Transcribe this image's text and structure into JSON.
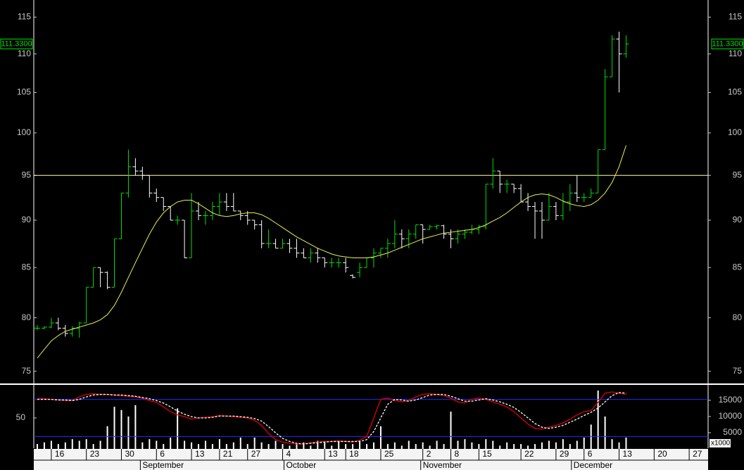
{
  "chart_data": [
    {
      "type": "ohlc",
      "open": [
        79,
        79,
        79.1,
        79.5,
        79,
        78.5,
        79,
        79.5,
        83,
        85,
        84.5,
        83,
        88,
        93,
        96,
        95.5,
        95,
        93,
        92.5,
        91.5,
        90,
        90,
        86,
        91,
        90.5,
        90.5,
        91.5,
        92,
        91.5,
        91,
        90.5,
        90,
        89.5,
        87.5,
        87.5,
        87,
        87.5,
        87,
        86.5,
        86,
        86.5,
        86,
        85.5,
        85.5,
        85.5,
        84.2,
        84.5,
        85,
        86,
        86.5,
        87,
        87.5,
        88.5,
        88,
        88.5,
        89.5,
        89,
        89.3,
        89.4,
        88.5,
        88,
        88.5,
        88.7,
        89,
        89.3,
        94,
        95.5,
        94,
        94,
        93.5,
        92,
        91.5,
        91,
        90,
        91.5,
        90.5,
        92,
        93,
        92.5,
        92.5,
        93,
        98,
        107,
        112,
        110
      ],
      "high": [
        79.3,
        79.2,
        80,
        80,
        79.3,
        79.2,
        79.6,
        83,
        85,
        85,
        84.6,
        88,
        93,
        98,
        97,
        96,
        95,
        93.5,
        92.5,
        91.5,
        90.5,
        90,
        93,
        92,
        91,
        92,
        93,
        93,
        93,
        91,
        91,
        90,
        90,
        89,
        88,
        88,
        88,
        88,
        87,
        87,
        87,
        86,
        86,
        86,
        86,
        84.3,
        85.5,
        86,
        87,
        87,
        88,
        90,
        89,
        89,
        89.5,
        89.5,
        89.5,
        89.5,
        89.5,
        89,
        89,
        89,
        89.5,
        89.5,
        94,
        97,
        95.5,
        94.5,
        94,
        94,
        93,
        92,
        92,
        93,
        92,
        93,
        94,
        95,
        93,
        93.5,
        98,
        108,
        112.5,
        113,
        112.5
      ],
      "low": [
        78.8,
        78.9,
        79,
        78.8,
        78.2,
        78.2,
        78.1,
        79.5,
        83,
        83,
        82.8,
        83,
        88,
        92.5,
        95,
        94.5,
        92.5,
        92,
        91,
        90,
        89.5,
        86,
        86,
        90,
        89.5,
        90,
        90.5,
        91,
        91,
        90,
        89.5,
        89,
        87,
        87,
        87,
        87,
        86.5,
        86,
        86,
        85.5,
        85.5,
        85,
        85,
        85,
        84.5,
        83.9,
        84,
        85,
        85,
        86,
        86,
        87,
        87,
        87,
        88,
        87.5,
        89,
        89,
        88,
        87,
        87.5,
        88,
        88.5,
        88.5,
        89,
        93.5,
        93,
        93,
        93,
        92,
        91,
        88,
        88,
        90,
        90,
        90,
        91,
        92,
        92,
        92.5,
        93,
        98,
        107,
        105,
        109.5
      ],
      "close": [
        79,
        79.1,
        79.5,
        79,
        78.5,
        79,
        79.5,
        83,
        85,
        84.5,
        83,
        88,
        93,
        96,
        95.5,
        95,
        93,
        92.5,
        91.5,
        90,
        90,
        86,
        91,
        90.5,
        90.5,
        91.5,
        92,
        91.5,
        91,
        90.5,
        90,
        89.5,
        87.5,
        87.5,
        87,
        87.5,
        87,
        86.5,
        86,
        86.5,
        86,
        85.5,
        85.5,
        85.5,
        85,
        84,
        85,
        86,
        86.5,
        87,
        87.5,
        88.5,
        88,
        88.5,
        89.5,
        89,
        89.3,
        89.4,
        88.5,
        88,
        88.5,
        88.7,
        89,
        89.3,
        94,
        95.5,
        94,
        94,
        93.5,
        92,
        91.5,
        91,
        90,
        91.5,
        90.5,
        92,
        93,
        92.5,
        92.5,
        93,
        98,
        107,
        112,
        110,
        111.33
      ],
      "ma": [
        76.2,
        77,
        77.8,
        78.3,
        78.7,
        78.9,
        79.1,
        79.3,
        79.5,
        79.8,
        80.3,
        81.2,
        82.5,
        84,
        85.5,
        87,
        88.5,
        89.8,
        90.8,
        91.5,
        92,
        92.2,
        92.2,
        91.8,
        91.3,
        90.8,
        90.5,
        90.4,
        90.5,
        90.7,
        90.8,
        90.8,
        90.6,
        90.2,
        89.7,
        89.2,
        88.7,
        88.2,
        87.8,
        87.4,
        87,
        86.7,
        86.4,
        86.2,
        86.1,
        86,
        86,
        86,
        86.1,
        86.3,
        86.5,
        86.8,
        87.1,
        87.4,
        87.7,
        88,
        88.2,
        88.4,
        88.6,
        88.7,
        88.8,
        88.9,
        89,
        89.2,
        89.5,
        89.9,
        90.3,
        90.8,
        91.4,
        92,
        92.5,
        92.8,
        92.9,
        92.8,
        92.5,
        92.1,
        91.8,
        91.6,
        91.5,
        91.7,
        92.2,
        93,
        94.2,
        96,
        98.5
      ],
      "up_color": "#00e000",
      "down_color": "#ffffff",
      "ma_color": "#ecec50",
      "hline_color": "#ffffb0",
      "hline": 95,
      "last_price": {
        "value": 111.33,
        "label": "111.3300"
      },
      "log": true,
      "ylim": [
        73.9,
        117.4
      ],
      "yticks": [
        75,
        80,
        85,
        90,
        95,
        100,
        105,
        110,
        115
      ],
      "xlim": [
        -0.5,
        95.7
      ],
      "xticks": [
        {
          "value": 2,
          "label": "16"
        },
        {
          "value": 7,
          "label": "23"
        },
        {
          "value": 12,
          "label": "30"
        },
        {
          "value": 17,
          "label": "6"
        },
        {
          "value": 22,
          "label": "13"
        },
        {
          "value": 26,
          "label": "21"
        },
        {
          "value": 30,
          "label": "27"
        },
        {
          "value": 35,
          "label": "4"
        },
        {
          "value": 41,
          "label": "13"
        },
        {
          "value": 44,
          "label": "18"
        },
        {
          "value": 49,
          "label": "25"
        },
        {
          "value": 55,
          "label": "2"
        },
        {
          "value": 59,
          "label": "8"
        },
        {
          "value": 63,
          "label": "15"
        },
        {
          "value": 69,
          "label": "22"
        },
        {
          "value": 74,
          "label": "29"
        },
        {
          "value": 78,
          "label": "6"
        },
        {
          "value": 83,
          "label": "13"
        },
        {
          "value": 88,
          "label": "20"
        },
        {
          "value": 93,
          "label": "27"
        }
      ],
      "months": [
        {
          "value": 14.7,
          "label": "September"
        },
        {
          "value": 35.2,
          "label": "October"
        },
        {
          "value": 54.7,
          "label": "November"
        },
        {
          "value": 76.2,
          "label": "December"
        }
      ]
    },
    {
      "type": "indicator",
      "ylim": [
        0,
        100
      ],
      "yticks": [
        50
      ],
      "levels": [
        80,
        20
      ],
      "level_color": "#2828ff",
      "series": [
        {
          "color": "#e00000",
          "values": [
            82,
            81,
            80,
            79,
            78,
            78,
            84,
            88,
            89,
            88,
            88,
            87,
            86,
            85,
            84,
            82,
            78,
            75,
            68,
            60,
            55,
            52,
            48,
            50,
            51,
            52,
            54,
            53,
            52,
            51,
            50,
            46,
            38,
            25,
            15,
            11,
            9,
            8,
            8,
            10,
            11,
            12,
            12,
            13,
            12,
            11,
            14,
            20,
            50,
            80,
            82,
            78,
            76,
            78,
            84,
            88,
            89,
            88,
            86,
            82,
            76,
            74,
            80,
            82,
            80,
            76,
            72,
            68,
            60,
            50,
            40,
            33,
            32,
            35,
            38,
            42,
            48,
            55,
            60,
            62,
            75,
            90,
            92,
            90,
            88
          ]
        },
        {
          "color": "#ffffff",
          "dashed": true,
          "values": [
            80,
            80,
            80,
            79,
            79,
            78,
            80,
            84,
            87,
            88,
            88,
            87,
            87,
            86,
            85,
            83,
            81,
            78,
            74,
            68,
            61,
            56,
            52,
            50,
            50,
            51,
            53,
            53,
            53,
            52,
            51,
            49,
            45,
            36,
            26,
            17,
            12,
            9,
            8,
            9,
            10,
            11,
            12,
            12,
            12,
            12,
            12,
            15,
            28,
            50,
            72,
            80,
            79,
            77,
            79,
            83,
            87,
            88,
            88,
            85,
            81,
            77,
            77,
            79,
            81,
            79,
            76,
            72,
            67,
            59,
            50,
            41,
            35,
            33,
            35,
            38,
            43,
            48,
            54,
            59,
            66,
            76,
            86,
            91,
            90
          ]
        }
      ],
      "volume": {
        "color": "#ffffff",
        "axis": "y2",
        "values": [
          1500,
          2000,
          2500,
          1500,
          2000,
          3000,
          2500,
          3000,
          1500,
          2500,
          7000,
          13000,
          12000,
          10000,
          13500,
          2000,
          3000,
          2500,
          1500,
          3500,
          12500,
          2500,
          2000,
          1500,
          2500,
          1500,
          3000,
          1500,
          2000,
          3500,
          1500,
          3500,
          2000,
          1500,
          2500,
          1500,
          1000,
          1500,
          2000,
          1000,
          2500,
          2000,
          1000,
          2500,
          1500,
          1500,
          2500,
          1500,
          2000,
          7000,
          1500,
          2000,
          1000,
          2500,
          1500,
          2000,
          1000,
          2500,
          1500,
          11500,
          2500,
          3000,
          2000,
          1500,
          3000,
          2500,
          1000,
          2000,
          1500,
          1500,
          1000,
          1500,
          2000,
          2500,
          2000,
          3000,
          1500,
          2500,
          3500,
          7500,
          18000,
          10000,
          3000,
          2000,
          3500
        ]
      },
      "y2lim": [
        0,
        19100
      ],
      "y2ticks": [
        5000,
        10000,
        15000
      ],
      "y2label": "x1000"
    }
  ]
}
